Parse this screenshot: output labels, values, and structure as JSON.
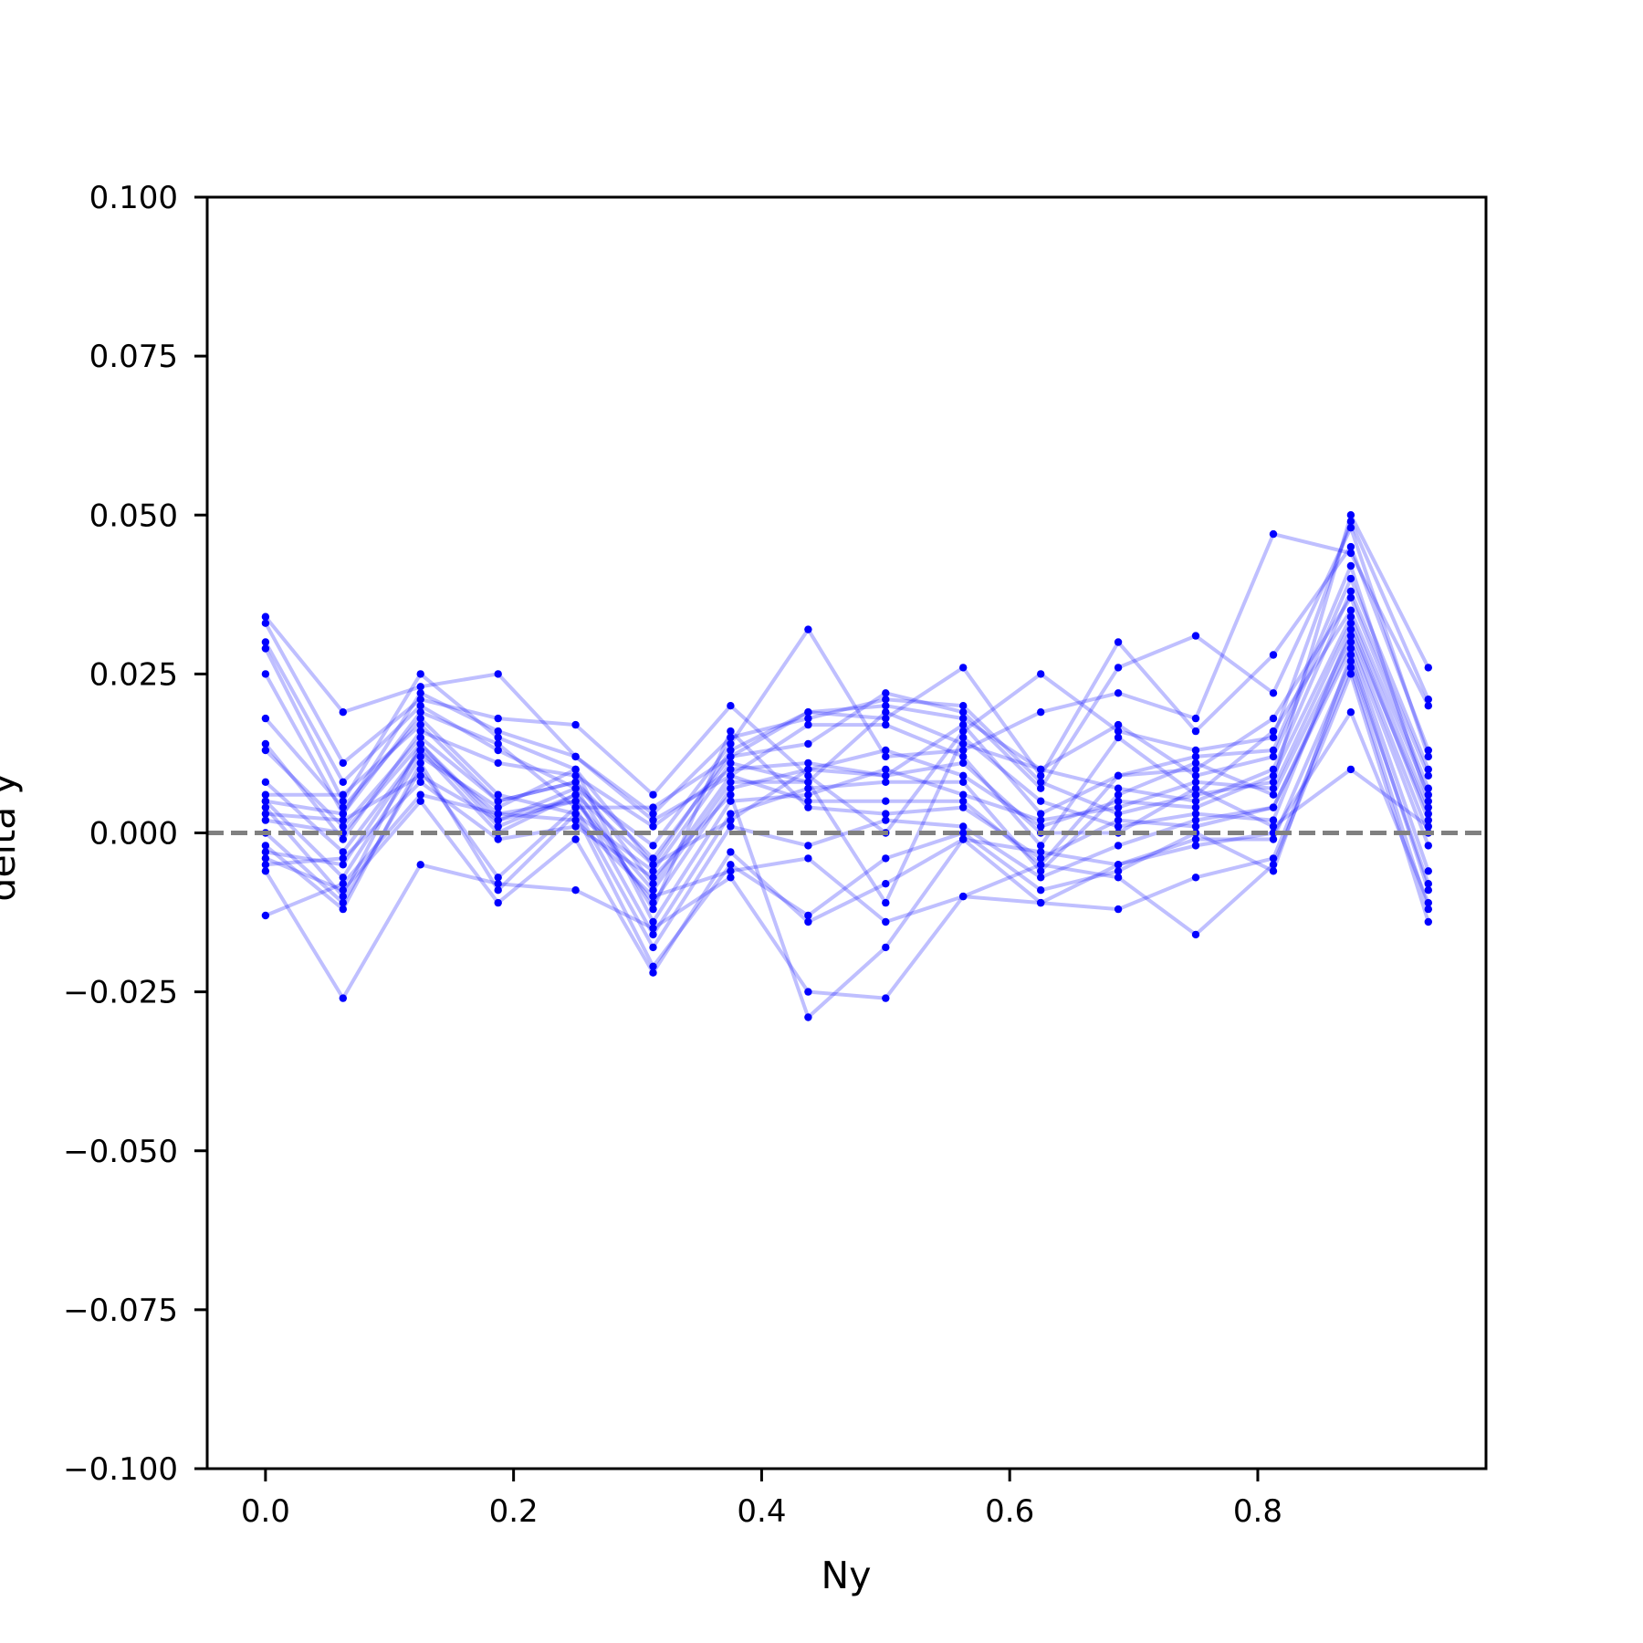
{
  "chart_data": {
    "type": "line",
    "title": "",
    "xlabel": "Ny",
    "ylabel": "delta y",
    "xlim": [
      -0.047,
      0.984
    ],
    "ylim": [
      -0.1,
      0.1
    ],
    "xticks": [
      0.0,
      0.2,
      0.4,
      0.6,
      0.8
    ],
    "xtick_labels": [
      "0.0",
      "0.2",
      "0.4",
      "0.6",
      "0.8"
    ],
    "yticks": [
      -0.1,
      -0.075,
      -0.05,
      -0.025,
      0.0,
      0.025,
      0.05,
      0.075,
      0.1
    ],
    "ytick_labels": [
      "−0.100",
      "−0.075",
      "−0.050",
      "−0.025",
      "0.000",
      "0.025",
      "0.050",
      "0.075",
      "0.100"
    ],
    "grid": false,
    "legend": "none",
    "series_color": "#0000ff",
    "reference_line": {
      "y": 0.0,
      "style": "dashed",
      "color": "#808080"
    },
    "x": [
      0.0,
      0.0625,
      0.125,
      0.1875,
      0.25,
      0.3125,
      0.375,
      0.4375,
      0.5,
      0.5625,
      0.625,
      0.6875,
      0.75,
      0.8125,
      0.875,
      0.9375
    ],
    "series": [
      {
        "values": [
          0.034,
          0.019,
          0.023,
          0.025,
          0.012,
          0.003,
          0.015,
          0.018,
          0.021,
          0.02,
          0.008,
          0.003,
          0.006,
          0.008,
          0.05,
          0.026
        ]
      },
      {
        "values": [
          0.033,
          0.011,
          0.021,
          0.018,
          0.017,
          0.006,
          0.02,
          0.009,
          0.0,
          0.016,
          0.025,
          0.016,
          0.013,
          0.015,
          0.049,
          0.021
        ]
      },
      {
        "values": [
          0.03,
          0.008,
          0.02,
          0.013,
          0.007,
          -0.002,
          0.014,
          0.032,
          0.012,
          0.013,
          0.019,
          0.022,
          0.018,
          0.047,
          0.044,
          0.02
        ]
      },
      {
        "values": [
          0.029,
          0.005,
          0.025,
          0.015,
          0.01,
          -0.005,
          0.013,
          0.019,
          0.018,
          0.026,
          0.009,
          0.03,
          0.016,
          0.028,
          0.045,
          0.013
        ]
      },
      {
        "values": [
          0.025,
          0.003,
          0.019,
          0.014,
          0.004,
          0.004,
          0.012,
          0.014,
          0.022,
          0.019,
          0.007,
          0.026,
          0.031,
          0.022,
          0.048,
          0.012
        ]
      },
      {
        "values": [
          0.018,
          0.004,
          0.018,
          0.006,
          0.003,
          -0.006,
          0.011,
          0.008,
          0.019,
          0.014,
          0.01,
          0.017,
          0.009,
          0.012,
          0.04,
          0.01
        ]
      },
      {
        "values": [
          0.014,
          -0.001,
          0.016,
          0.011,
          0.009,
          0.001,
          0.01,
          0.011,
          0.009,
          0.017,
          0.003,
          0.009,
          0.01,
          0.018,
          0.037,
          0.007
        ]
      },
      {
        "values": [
          0.013,
          0.001,
          0.015,
          0.005,
          0.008,
          -0.008,
          0.009,
          0.017,
          0.017,
          0.012,
          -0.002,
          0.015,
          0.006,
          0.016,
          0.035,
          0.006
        ]
      },
      {
        "values": [
          0.008,
          -0.003,
          0.013,
          0.003,
          0.005,
          -0.011,
          0.007,
          0.01,
          0.013,
          0.009,
          0.001,
          0.005,
          0.004,
          0.009,
          0.034,
          0.004
        ]
      },
      {
        "values": [
          0.005,
          -0.007,
          0.012,
          0.004,
          0.01,
          -0.014,
          0.005,
          0.006,
          0.01,
          0.006,
          0.002,
          0.004,
          0.008,
          0.007,
          0.033,
          0.002
        ]
      },
      {
        "values": [
          0.004,
          -0.01,
          0.014,
          0.001,
          0.006,
          -0.016,
          0.003,
          0.007,
          0.008,
          0.008,
          -0.006,
          0.006,
          0.011,
          0.006,
          0.031,
          0.0
        ]
      },
      {
        "values": [
          0.003,
          0.002,
          0.009,
          0.002,
          0.007,
          -0.012,
          0.016,
          0.004,
          0.003,
          0.004,
          -0.004,
          0.002,
          0.001,
          0.004,
          0.03,
          -0.002
        ]
      },
      {
        "values": [
          0.0,
          -0.011,
          0.01,
          -0.007,
          0.004,
          -0.018,
          0.001,
          -0.002,
          0.002,
          0.001,
          -0.007,
          -0.002,
          0.002,
          0.004,
          0.029,
          -0.006
        ]
      },
      {
        "values": [
          -0.002,
          -0.012,
          0.011,
          -0.009,
          0.003,
          -0.021,
          -0.005,
          -0.013,
          -0.004,
          0.0,
          -0.009,
          -0.006,
          0.0,
          -0.006,
          0.028,
          -0.009
        ]
      },
      {
        "values": [
          -0.004,
          -0.009,
          0.005,
          -0.011,
          -0.001,
          -0.022,
          -0.003,
          -0.014,
          -0.008,
          -0.001,
          -0.011,
          -0.012,
          -0.007,
          -0.004,
          0.026,
          -0.012
        ]
      },
      {
        "values": [
          -0.006,
          -0.026,
          -0.005,
          -0.008,
          -0.009,
          -0.015,
          -0.007,
          -0.025,
          -0.026,
          -0.01,
          -0.005,
          -0.007,
          -0.016,
          -0.005,
          0.025,
          -0.014
        ]
      },
      {
        "values": [
          0.006,
          0.006,
          0.017,
          0.005,
          0.008,
          -0.004,
          0.012,
          0.019,
          0.02,
          0.018,
          0.01,
          0.007,
          0.005,
          0.01,
          0.038,
          0.009
        ]
      },
      {
        "values": [
          0.002,
          0.0,
          0.014,
          0.002,
          0.005,
          -0.009,
          0.008,
          0.008,
          -0.011,
          0.015,
          0.005,
          0.001,
          0.003,
          0.002,
          0.032,
          0.003
        ]
      },
      {
        "values": [
          -0.005,
          -0.004,
          0.008,
          -0.001,
          0.001,
          -0.007,
          0.006,
          -0.029,
          -0.018,
          -0.001,
          -0.003,
          -0.005,
          -0.001,
          -0.001,
          0.027,
          -0.008
        ]
      },
      {
        "values": [
          -0.013,
          -0.008,
          0.006,
          0.003,
          0.002,
          -0.01,
          -0.006,
          -0.004,
          -0.014,
          -0.01,
          -0.011,
          -0.005,
          -0.002,
          0.0,
          0.019,
          -0.011
        ]
      },
      {
        "values": [
          0.005,
          0.003,
          0.022,
          0.016,
          0.012,
          0.002,
          0.009,
          0.005,
          0.005,
          0.005,
          -0.005,
          0.009,
          0.012,
          0.013,
          0.042,
          0.005
        ]
      },
      {
        "values": [
          -0.003,
          -0.005,
          0.013,
          0.0,
          0.006,
          -0.005,
          0.002,
          0.01,
          0.009,
          0.011,
          0.0,
          0.0,
          0.007,
          0.001,
          0.01,
          0.001
        ]
      }
    ]
  }
}
